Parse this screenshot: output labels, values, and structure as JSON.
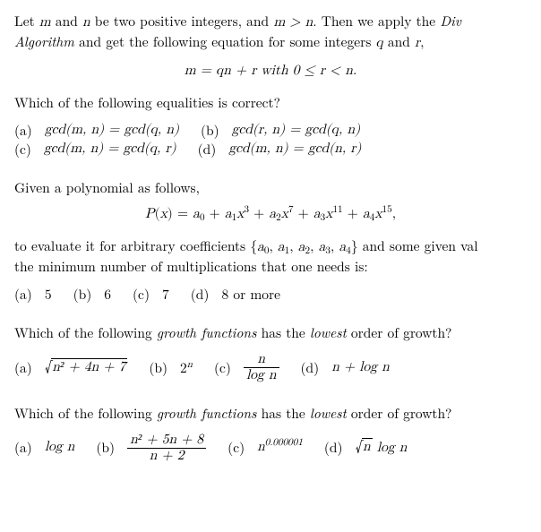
{
  "q1": {
    "intro_a": "Let ",
    "m": "m",
    "intro_b": " and ",
    "n": "n",
    "intro_c": " be two positive integers, and ",
    "cond": "m > n",
    "intro_d": ".  Then we apply the ",
    "alg1": "Div",
    "alg2": "Algorithm",
    "intro_e": " and get the following equation for some integers ",
    "q": "q",
    "intro_f": " and ",
    "r": "r",
    "intro_g": ",",
    "equation": "m = qn + r   with   0 ≤ r < n.",
    "question": "Which of the following equalities is correct?",
    "opts": {
      "a_label": "(a)",
      "a": "gcd(m, n) = gcd(q, n)",
      "b_label": "(b)",
      "b": "gcd(r, n) = gcd(q, n)",
      "c_label": "(c)",
      "c": "gcd(m, n) = gcd(q, r)",
      "d_label": "(d)",
      "d": "gcd(m, n) = gcd(n, r)"
    }
  },
  "q2": {
    "intro": "Given a polynomial as follows,",
    "poly_lhs": "P(x) = a",
    "terms": {
      "a0": "a",
      "s0": "0",
      "plus": " + ",
      "a1": "a",
      "s1": "1",
      "x1": "x",
      "e1": "3",
      "a2": "a",
      "s2": "2",
      "x2": "x",
      "e2": "7",
      "a3": "a",
      "s3": "3",
      "x3": "x",
      "e3": "11",
      "a4": "a",
      "s4": "4",
      "x4": "x",
      "e4": "15",
      "comma": ","
    },
    "line2a": "to evaluate it for arbitrary coefficients {",
    "coeffs": "a",
    "coeff_list_plain": "0, a1, a2, a3, a4",
    "line2b": "} and some given val",
    "line3": "the minimum number of multiplications that one needs is:",
    "opts": {
      "a_label": "(a)",
      "a": "5",
      "b_label": "(b)",
      "b": "6",
      "c_label": "(c)",
      "c": "7",
      "d_label": "(d)",
      "d": "8 or more"
    }
  },
  "q3": {
    "question_a": "Which of the following ",
    "gf": "growth functions",
    "question_b": " has the ",
    "low": "lowest",
    "question_c": " order of growth?",
    "opts": {
      "a_label": "(a)",
      "a_sqrt": "n",
      "a_body": "² + 4n + 7",
      "b_label": "(b)",
      "b": "2",
      "b_exp": "n",
      "c_label": "(c)",
      "c_num": "n",
      "c_den": "log n",
      "d_label": "(d)",
      "d": "n + log n"
    }
  },
  "q4": {
    "question_a": "Which of the following ",
    "gf": "growth functions",
    "question_b": " has the ",
    "low": "lowest",
    "question_c": " order of growth?",
    "opts": {
      "a_label": "(a)",
      "a": "log n",
      "b_label": "(b)",
      "b_num": "n² + 5n + 8",
      "b_den": "n + 2",
      "c_label": "(c)",
      "c_base": "n",
      "c_exp": "0.000001",
      "d_label": "(d)",
      "d_sqrt": "n",
      "d_tail": " log n"
    }
  }
}
